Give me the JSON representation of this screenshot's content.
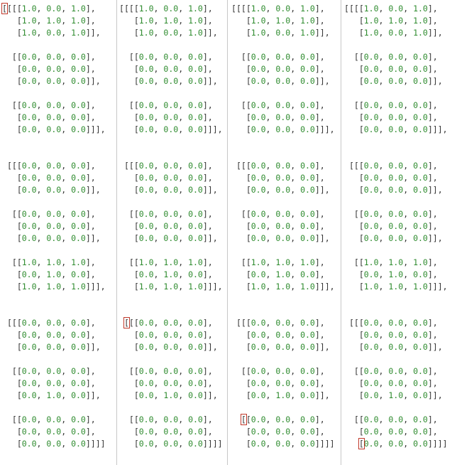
{
  "colors": {
    "number": "#2e8b2e",
    "bracket": "#333333",
    "highlight": "#c0392b",
    "divider": "#c8c8c8"
  },
  "panes": [
    {
      "lines": [
        "[[[[1.0, 0.0, 1.0],",
        "   [1.0, 1.0, 1.0],",
        "   [1.0, 0.0, 1.0]],",
        "",
        "  [[0.0, 0.0, 0.0],",
        "   [0.0, 0.0, 0.0],",
        "   [0.0, 0.0, 0.0]],",
        "",
        "  [[0.0, 0.0, 0.0],",
        "   [0.0, 0.0, 0.0],",
        "   [0.0, 0.0, 0.0]]],",
        "",
        "",
        " [[[0.0, 0.0, 0.0],",
        "   [0.0, 0.0, 0.0],",
        "   [0.0, 0.0, 0.0]],",
        "",
        "  [[0.0, 0.0, 0.0],",
        "   [0.0, 0.0, 0.0],",
        "   [0.0, 0.0, 0.0]],",
        "",
        "  [[1.0, 1.0, 1.0],",
        "   [0.0, 1.0, 0.0],",
        "   [1.0, 1.0, 1.0]]],",
        "",
        "",
        " [[[0.0, 0.0, 0.0],",
        "   [0.0, 0.0, 0.0],",
        "   [0.0, 0.0, 0.0]],",
        "",
        "  [[0.0, 0.0, 0.0],",
        "   [0.0, 0.0, 0.0],",
        "   [0.0, 1.0, 0.0]],",
        "",
        "  [[0.0, 0.0, 0.0],",
        "   [0.0, 0.0, 0.0],",
        "   [0.0, 0.0, 0.0]]]]"
      ]
    },
    {
      "lines": [
        "[[[[1.0, 0.0, 1.0],",
        "   [1.0, 1.0, 1.0],",
        "   [1.0, 0.0, 1.0]],",
        "",
        "  [[0.0, 0.0, 0.0],",
        "   [0.0, 0.0, 0.0],",
        "   [0.0, 0.0, 0.0]],",
        "",
        "  [[0.0, 0.0, 0.0],",
        "   [0.0, 0.0, 0.0],",
        "   [0.0, 0.0, 0.0]]],",
        "",
        "",
        " [[[0.0, 0.0, 0.0],",
        "   [0.0, 0.0, 0.0],",
        "   [0.0, 0.0, 0.0]],",
        "",
        "  [[0.0, 0.0, 0.0],",
        "   [0.0, 0.0, 0.0],",
        "   [0.0, 0.0, 0.0]],",
        "",
        "  [[1.0, 1.0, 1.0],",
        "   [0.0, 1.0, 0.0],",
        "   [1.0, 1.0, 1.0]]],",
        "",
        "",
        " [[[0.0, 0.0, 0.0],",
        "   [0.0, 0.0, 0.0],",
        "   [0.0, 0.0, 0.0]],",
        "",
        "  [[0.0, 0.0, 0.0],",
        "   [0.0, 0.0, 0.0],",
        "   [0.0, 1.0, 0.0]],",
        "",
        "  [[0.0, 0.0, 0.0],",
        "   [0.0, 0.0, 0.0],",
        "   [0.0, 0.0, 0.0]]]]"
      ]
    },
    {
      "lines": [
        "[[[[1.0, 0.0, 1.0],",
        "   [1.0, 1.0, 1.0],",
        "   [1.0, 0.0, 1.0]],",
        "",
        "  [[0.0, 0.0, 0.0],",
        "   [0.0, 0.0, 0.0],",
        "   [0.0, 0.0, 0.0]],",
        "",
        "  [[0.0, 0.0, 0.0],",
        "   [0.0, 0.0, 0.0],",
        "   [0.0, 0.0, 0.0]]],",
        "",
        "",
        " [[[0.0, 0.0, 0.0],",
        "   [0.0, 0.0, 0.0],",
        "   [0.0, 0.0, 0.0]],",
        "",
        "  [[0.0, 0.0, 0.0],",
        "   [0.0, 0.0, 0.0],",
        "   [0.0, 0.0, 0.0]],",
        "",
        "  [[1.0, 1.0, 1.0],",
        "   [0.0, 1.0, 0.0],",
        "   [1.0, 1.0, 1.0]]],",
        "",
        "",
        " [[[0.0, 0.0, 0.0],",
        "   [0.0, 0.0, 0.0],",
        "   [0.0, 0.0, 0.0]],",
        "",
        "  [[0.0, 0.0, 0.0],",
        "   [0.0, 0.0, 0.0],",
        "   [0.0, 1.0, 0.0]],",
        "",
        "  [[0.0, 0.0, 0.0],",
        "   [0.0, 0.0, 0.0],",
        "   [0.0, 0.0, 0.0]]]]"
      ]
    },
    {
      "lines": [
        "[[[[1.0, 0.0, 1.0],",
        "   [1.0, 1.0, 1.0],",
        "   [1.0, 0.0, 1.0]],",
        "",
        "  [[0.0, 0.0, 0.0],",
        "   [0.0, 0.0, 0.0],",
        "   [0.0, 0.0, 0.0]],",
        "",
        "  [[0.0, 0.0, 0.0],",
        "   [0.0, 0.0, 0.0],",
        "   [0.0, 0.0, 0.0]]],",
        "",
        "",
        " [[[0.0, 0.0, 0.0],",
        "   [0.0, 0.0, 0.0],",
        "   [0.0, 0.0, 0.0]],",
        "",
        "  [[0.0, 0.0, 0.0],",
        "   [0.0, 0.0, 0.0],",
        "   [0.0, 0.0, 0.0]],",
        "",
        "  [[1.0, 1.0, 1.0],",
        "   [0.0, 1.0, 0.0],",
        "   [1.0, 1.0, 1.0]]],",
        "",
        "",
        " [[[0.0, 0.0, 0.0],",
        "   [0.0, 0.0, 0.0],",
        "   [0.0, 0.0, 0.0]],",
        "",
        "  [[0.0, 0.0, 0.0],",
        "   [0.0, 0.0, 0.0],",
        "   [0.0, 1.0, 0.0]],",
        "",
        "  [[0.0, 0.0, 0.0],",
        "   [0.0, 0.0, 0.0],",
        "   [0.0, 0.0, 0.0]]]]"
      ]
    }
  ]
}
